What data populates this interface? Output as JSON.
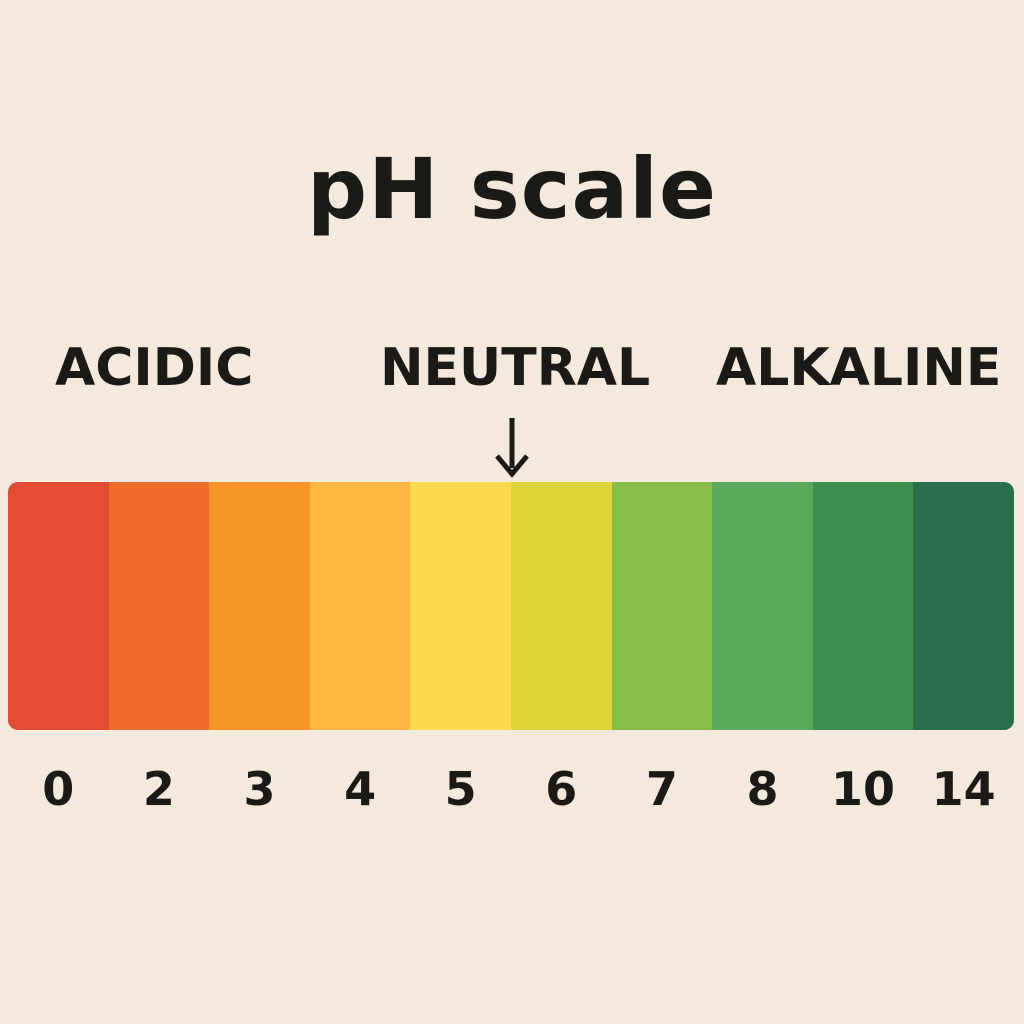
{
  "title": "pH scale",
  "categories": {
    "acidic": "ACIDIC",
    "neutral": "NEUTRAL",
    "alkaline": "ALKALINE"
  },
  "neutral_marker_icon": "down-arrow",
  "segments": [
    {
      "label": "0",
      "color": "#e34b35"
    },
    {
      "label": "2",
      "color": "#ef6c2b"
    },
    {
      "label": "3",
      "color": "#f7952a"
    },
    {
      "label": "4",
      "color": "#fbb73f"
    },
    {
      "label": "5",
      "color": "#fdd94f"
    },
    {
      "label": "6",
      "color": "#dcd535"
    },
    {
      "label": "7",
      "color": "#86bf4a"
    },
    {
      "label": "8",
      "color": "#5aa858"
    },
    {
      "label": "10",
      "color": "#3e8e50"
    },
    {
      "label": "14",
      "color": "#2a6e4d"
    }
  ]
}
